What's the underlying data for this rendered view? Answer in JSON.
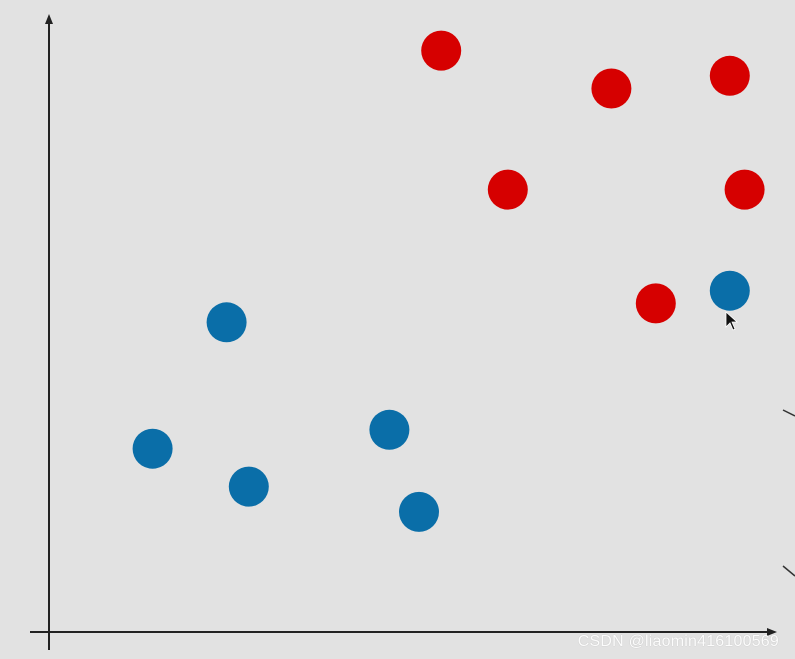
{
  "chart_data": {
    "type": "scatter",
    "title": "",
    "xlabel": "",
    "ylabel": "",
    "grid": false,
    "legend": "none",
    "xlim": [
      0,
      10
    ],
    "ylim": [
      0,
      10
    ],
    "series": [
      {
        "color": "#d60000",
        "points": [
          {
            "x": 5.3,
            "y": 9.2
          },
          {
            "x": 7.6,
            "y": 8.6
          },
          {
            "x": 9.2,
            "y": 8.8
          },
          {
            "x": 6.2,
            "y": 7.0
          },
          {
            "x": 9.4,
            "y": 7.0
          },
          {
            "x": 8.2,
            "y": 5.2
          }
        ]
      },
      {
        "color": "#0a6ea8",
        "points": [
          {
            "x": 9.2,
            "y": 5.4
          },
          {
            "x": 2.4,
            "y": 4.9
          },
          {
            "x": 1.4,
            "y": 2.9
          },
          {
            "x": 2.7,
            "y": 2.3
          },
          {
            "x": 4.6,
            "y": 3.2
          },
          {
            "x": 5.0,
            "y": 1.9
          }
        ]
      }
    ]
  },
  "watermark": {
    "text": "CSDN @liaomin416100569"
  }
}
